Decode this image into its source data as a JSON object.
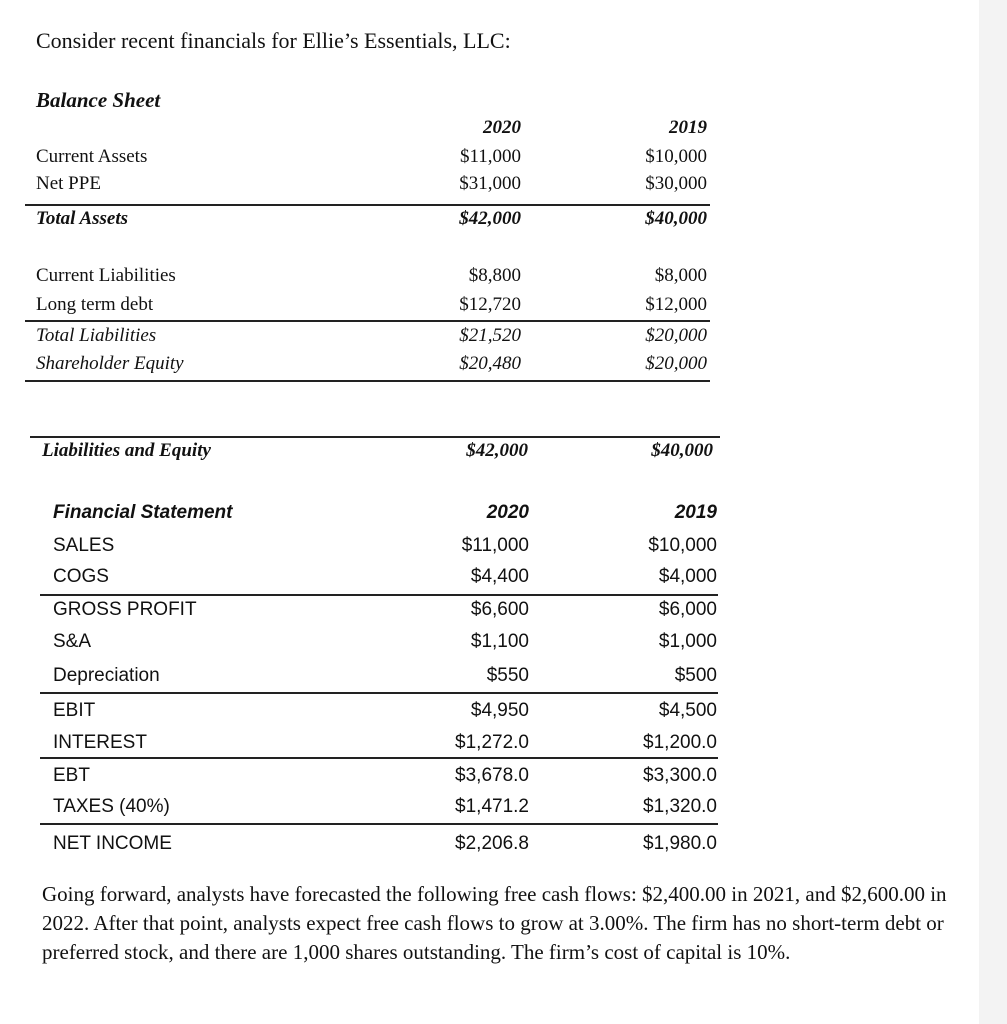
{
  "intro": "Consider recent financials for Ellie’s Essentials, LLC:",
  "balance_sheet": {
    "title": "Balance Sheet",
    "years": [
      "2020",
      "2019"
    ],
    "rows": [
      {
        "label": "Current Assets",
        "v2020": "$11,000",
        "v2019": "$10,000",
        "style": ""
      },
      {
        "label": "Net PPE",
        "v2020": "$31,000",
        "v2019": "$30,000",
        "style": ""
      },
      {
        "label": "Total Assets",
        "v2020": "$42,000",
        "v2019": "$40,000",
        "style": "bi"
      },
      {
        "label": "Current Liabilities",
        "v2020": "$8,800",
        "v2019": "$8,000",
        "style": ""
      },
      {
        "label": "Long term debt",
        "v2020": "$12,720",
        "v2019": "$12,000",
        "style": ""
      },
      {
        "label": "Total Liabilities",
        "v2020": "$21,520",
        "v2019": "$20,000",
        "style": "i"
      },
      {
        "label": "Shareholder Equity",
        "v2020": "$20,480",
        "v2019": "$20,000",
        "style": "i"
      },
      {
        "label": "Liabilities and Equity",
        "v2020": "$42,000",
        "v2019": "$40,000",
        "style": "bi"
      }
    ]
  },
  "financial_statement": {
    "title": "Financial Statement",
    "years": [
      "2020",
      "2019"
    ],
    "rows": [
      {
        "label": "SALES",
        "v2020": "$11,000",
        "v2019": "$10,000"
      },
      {
        "label": "COGS",
        "v2020": "$4,400",
        "v2019": "$4,000"
      },
      {
        "label": "GROSS PROFIT",
        "v2020": "$6,600",
        "v2019": "$6,000"
      },
      {
        "label": "S&A",
        "v2020": "$1,100",
        "v2019": "$1,000"
      },
      {
        "label": "Depreciation",
        "v2020": "$550",
        "v2019": "$500"
      },
      {
        "label": "EBIT",
        "v2020": "$4,950",
        "v2019": "$4,500"
      },
      {
        "label": "INTEREST",
        "v2020": "$1,272.0",
        "v2019": "$1,200.0"
      },
      {
        "label": "EBT",
        "v2020": "$3,678.0",
        "v2019": "$3,300.0"
      },
      {
        "label": "TAXES (40%)",
        "v2020": "$1,471.2",
        "v2019": "$1,320.0"
      },
      {
        "label": "NET INCOME",
        "v2020": "$2,206.8",
        "v2019": "$1,980.0"
      }
    ]
  },
  "paragraph": "Going forward, analysts have forecasted the following free cash flows: $2,400.00 in 2021, and $2,600.00 in 2022.  After that point, analysts expect free cash flows to grow at 3.00%.  The firm has no short-term debt or preferred stock, and there are 1,000 shares outstanding.  The firm’s cost of capital is 10%."
}
